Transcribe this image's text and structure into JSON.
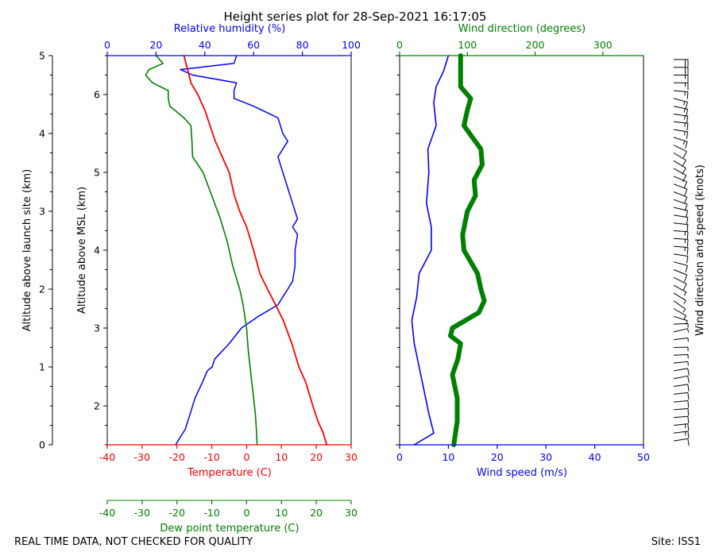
{
  "title": "Height series plot for 28-Sep-2021 16:17:05",
  "footer_left": "REAL TIME DATA, NOT CHECKED FOR QUALITY",
  "footer_right": "Site: ISS1",
  "colors": {
    "temp": "#ff0000",
    "dew": "#008000",
    "rh": "#0000ff",
    "wspd": "#0000ff",
    "wdir": "#008000",
    "barb": "#000000",
    "axis": "#000000"
  },
  "chart_data": [
    {
      "type": "line",
      "name": "thermo",
      "axes": {
        "temperature": {
          "label": "Temperature (C)",
          "range": [
            -40,
            30
          ],
          "ticks": [
            -40,
            -30,
            -20,
            -10,
            0,
            10,
            20,
            30
          ]
        },
        "dewpoint": {
          "label": "Dew point temperature (C)",
          "range": [
            -40,
            30
          ],
          "ticks": [
            -40,
            -30,
            -20,
            -10,
            0,
            10,
            20,
            30
          ]
        },
        "humidity": {
          "label": "Relative humidity (%)",
          "range": [
            0,
            100
          ],
          "ticks": [
            0,
            20,
            40,
            60,
            80,
            100
          ]
        },
        "agl": {
          "label": "Altitude above launch site (km)",
          "range": [
            0,
            5
          ],
          "ticks": [
            0,
            1,
            2,
            3,
            4,
            5
          ]
        },
        "msl": {
          "label": "Altitude above MSL (km)",
          "ticks": [
            2,
            3,
            4,
            5,
            6
          ],
          "tick_altitudes_agl": [
            0.5,
            1.5,
            2.5,
            3.5,
            4.5
          ],
          "display": [
            "2",
            "1",
            "3",
            "2",
            "4",
            "3",
            "5",
            "4",
            "6"
          ]
        }
      },
      "series": [
        {
          "name": "Temperature",
          "units": "C",
          "altitude_km": [
            0,
            0.15,
            0.3,
            0.5,
            0.8,
            1.0,
            1.3,
            1.6,
            1.8,
            2.0,
            2.2,
            2.5,
            2.8,
            3.0,
            3.2,
            3.5,
            3.7,
            3.9,
            4.1,
            4.3,
            4.5,
            4.65,
            4.8,
            5.0
          ],
          "values": [
            23.0,
            22.0,
            20.5,
            19.0,
            17.0,
            15.0,
            13.0,
            10.5,
            8.3,
            6.0,
            3.8,
            2.0,
            0.0,
            -2.0,
            -3.5,
            -5.0,
            -7.0,
            -9.0,
            -10.5,
            -12.0,
            -14.0,
            -16.0,
            -16.8,
            -18.0
          ]
        },
        {
          "name": "Dew point",
          "units": "C",
          "altitude_km": [
            0,
            0.2,
            0.4,
            0.6,
            0.8,
            1.0,
            1.2,
            1.5,
            1.8,
            2.0,
            2.3,
            2.6,
            2.9,
            3.2,
            3.5,
            3.7,
            3.9,
            4.1,
            4.2,
            4.35,
            4.45,
            4.55,
            4.65,
            4.75,
            4.82,
            4.9,
            5.0
          ],
          "values": [
            3.0,
            2.8,
            2.5,
            2.0,
            1.5,
            1.0,
            0.5,
            0.0,
            -1.0,
            -2.0,
            -4.0,
            -5.5,
            -7.5,
            -10.0,
            -12.5,
            -15.5,
            -15.7,
            -16.0,
            -18.0,
            -22.0,
            -22.5,
            -22.5,
            -27.0,
            -29.0,
            -28.0,
            -24.0,
            -26.0
          ]
        },
        {
          "name": "Relative humidity",
          "units": "%",
          "altitude_km": [
            0,
            0.2,
            0.4,
            0.6,
            0.8,
            0.95,
            1.0,
            1.1,
            1.3,
            1.5,
            1.65,
            1.8,
            1.9,
            2.0,
            2.1,
            2.3,
            2.5,
            2.7,
            2.8,
            2.9,
            3.1,
            3.3,
            3.5,
            3.7,
            3.9,
            4.0,
            4.2,
            4.35,
            4.45,
            4.55,
            4.65,
            4.75,
            4.82,
            4.9,
            5.0
          ],
          "values": [
            28,
            32,
            34,
            36,
            39,
            41,
            43,
            44,
            50,
            55,
            62,
            70,
            72,
            74,
            76,
            77,
            77,
            78,
            76,
            78,
            76,
            74,
            72,
            70,
            74,
            72,
            70,
            60,
            52,
            52,
            53,
            35,
            30,
            52,
            53
          ]
        },
        {
          "name": "Wind speed",
          "units": "m/s",
          "altitude_km": [
            0,
            0.15,
            0.4,
            0.7,
            1.0,
            1.3,
            1.6,
            1.9,
            2.2,
            2.5,
            2.8,
            3.1,
            3.5,
            3.8,
            4.1,
            4.4,
            4.6,
            4.8,
            5.0
          ],
          "values": [
            3.0,
            7.0,
            6.0,
            5.0,
            4.0,
            3.0,
            2.5,
            3.5,
            4.0,
            6.5,
            6.5,
            5.5,
            6.0,
            5.8,
            7.5,
            7.0,
            7.5,
            9.0,
            10.0
          ]
        },
        {
          "name": "Wind direction",
          "units": "degrees",
          "altitude_km": [
            0,
            0.3,
            0.6,
            0.9,
            1.1,
            1.3,
            1.4,
            1.5,
            1.7,
            1.85,
            2.0,
            2.2,
            2.5,
            2.7,
            3.0,
            3.2,
            3.4,
            3.6,
            3.8,
            4.1,
            4.3,
            4.45,
            4.6,
            4.8,
            5.0
          ],
          "values": [
            80,
            85,
            85,
            78,
            86,
            90,
            75,
            78,
            117,
            125,
            120,
            115,
            95,
            93,
            100,
            112,
            110,
            122,
            120,
            95,
            100,
            105,
            90,
            90,
            90
          ]
        }
      ]
    },
    {
      "type": "line",
      "name": "wind",
      "axes": {
        "wind_speed": {
          "label": "Wind speed (m/s)",
          "range": [
            0,
            50
          ],
          "ticks": [
            0,
            10,
            20,
            30,
            40,
            50
          ]
        },
        "wind_direction": {
          "label": "Wind direction (degrees)",
          "range": [
            0,
            360
          ],
          "ticks": [
            0,
            100,
            200,
            300
          ]
        }
      },
      "barbs_label": "Wind direction and speed (knots)"
    }
  ]
}
